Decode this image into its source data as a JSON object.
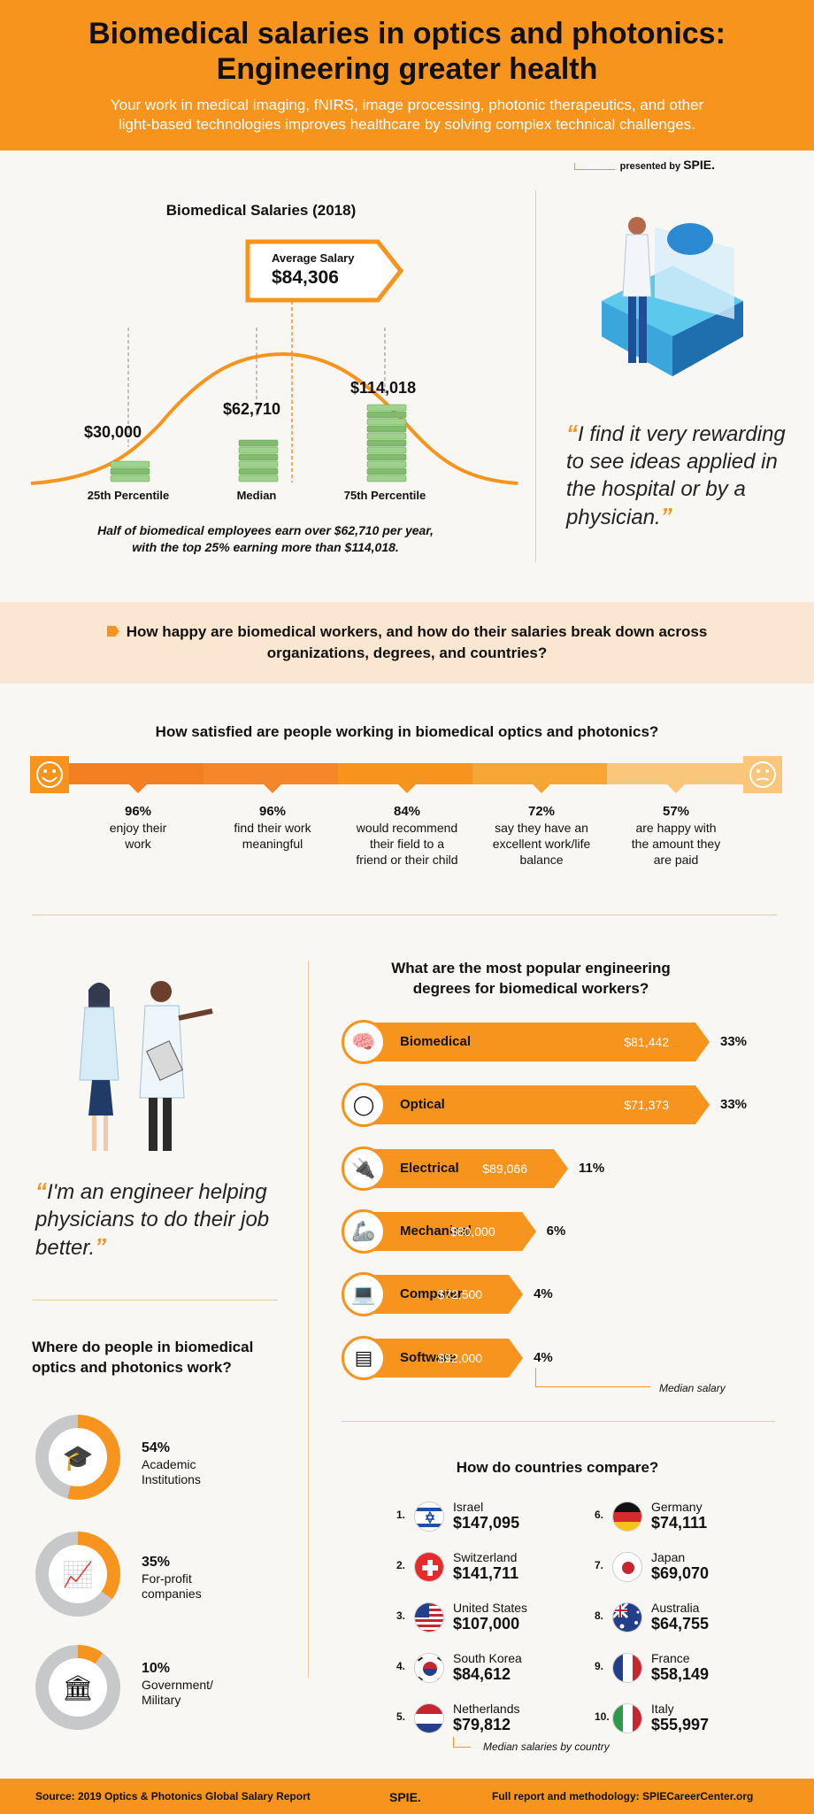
{
  "header": {
    "title_line1": "Biomedical salaries in optics and photonics:",
    "title_line2": "Engineering greater health",
    "subtitle_line1": "Your work in medical imaging, fNIRS, image processing, photonic therapeutics, and other",
    "subtitle_line2": "light-based technologies improves healthcare by solving complex technical challenges."
  },
  "presented": {
    "label": "presented by",
    "logo": "SPIE."
  },
  "salaries": {
    "title": "Biomedical Salaries (2018)",
    "average_label": "Average Salary",
    "average_value": "$84,306",
    "caption_line1": "Half of biomedical employees earn over $62,710 per year,",
    "caption_line2": "with the top 25% earning more than $114,018."
  },
  "chart_data": [
    {
      "type": "bar",
      "title": "Biomedical Salaries (2018)",
      "categories": [
        "25th Percentile",
        "Median",
        "75th Percentile"
      ],
      "values": [
        30000,
        62710,
        114018
      ],
      "value_labels": [
        "$30,000",
        "$62,710",
        "$114,018"
      ],
      "average": 84306
    },
    {
      "type": "bar",
      "title": "How satisfied are people working in biomedical optics and photonics?",
      "categories": [
        "enjoy their work",
        "find their work meaningful",
        "would recommend their field to a friend or their child",
        "say they have an excellent work/life balance",
        "are happy with the amount they are paid"
      ],
      "values": [
        96,
        96,
        84,
        72,
        57
      ]
    },
    {
      "type": "bar",
      "title": "What are the most popular engineering degrees for biomedical workers?",
      "categories": [
        "Biomedical",
        "Optical",
        "Electrical",
        "Mechanical",
        "Computer",
        "Software"
      ],
      "values": [
        33,
        33,
        11,
        6,
        4,
        4
      ],
      "median_salary": [
        81442,
        71373,
        89066,
        80000,
        72500,
        92000
      ]
    },
    {
      "type": "pie",
      "title": "Where do people in biomedical optics and photonics work?",
      "categories": [
        "Academic Institutions",
        "For-profit companies",
        "Government/ Military"
      ],
      "values": [
        54,
        35,
        10
      ]
    },
    {
      "type": "table",
      "title": "How do countries compare?",
      "categories": [
        "Israel",
        "Switzerland",
        "United States",
        "South Korea",
        "Netherlands",
        "Germany",
        "Japan",
        "Australia",
        "France",
        "Italy"
      ],
      "values": [
        147095,
        141711,
        107000,
        84612,
        79812,
        74111,
        69070,
        64755,
        58149,
        55997
      ]
    }
  ],
  "quote1": "I find it very rewarding to see ideas applied in the hospital or by a physician.",
  "band": {
    "line1": "How happy are biomedical workers, and how do their salaries break down across",
    "line2": "organizations, degrees, and countries?"
  },
  "satisfaction": {
    "title": "How satisfied are people working in biomedical optics and photonics?",
    "stats": [
      {
        "pct": "96%",
        "l1": "enjoy their",
        "l2": "work",
        "l3": ""
      },
      {
        "pct": "96%",
        "l1": "find their work",
        "l2": "meaningful",
        "l3": ""
      },
      {
        "pct": "84%",
        "l1": "would recommend",
        "l2": "their field to a",
        "l3": "friend or their child"
      },
      {
        "pct": "72%",
        "l1": "say they have an",
        "l2": "excellent work/life",
        "l3": "balance"
      },
      {
        "pct": "57%",
        "l1": "are happy with",
        "l2": "the amount they",
        "l3": "are paid"
      }
    ]
  },
  "degrees": {
    "title_line1": "What are the most popular engineering",
    "title_line2": "degrees for biomedical workers?",
    "items": [
      {
        "name": "Biomedical",
        "salary": "$81,442",
        "pct": "33%",
        "icon": "brain-icon"
      },
      {
        "name": "Optical",
        "salary": "$71,373",
        "pct": "33%",
        "icon": "lens-icon"
      },
      {
        "name": "Electrical",
        "salary": "$89,066",
        "pct": "11%",
        "icon": "plug-icon"
      },
      {
        "name": "Mechanical",
        "salary": "$80,000",
        "pct": "6%",
        "icon": "robot-arm-icon"
      },
      {
        "name": "Computer",
        "salary": "$72,500",
        "pct": "4%",
        "icon": "laptop-icon"
      },
      {
        "name": "Software",
        "salary": "$92,000",
        "pct": "4%",
        "icon": "code-icon"
      }
    ],
    "note": "Median salary"
  },
  "quote2": "I'm an engineer helping physicians to do their job better.",
  "work": {
    "title_line1": "Where do people in biomedical",
    "title_line2": "optics and photonics work?",
    "items": [
      {
        "pct": "54%",
        "l1": "Academic",
        "l2": "Institutions",
        "icon": "graduation-cap-icon"
      },
      {
        "pct": "35%",
        "l1": "For-profit",
        "l2": "companies",
        "icon": "presentation-board-icon"
      },
      {
        "pct": "10%",
        "l1": "Government/",
        "l2": "Military",
        "icon": "government-building-icon"
      }
    ]
  },
  "countries": {
    "title": "How do countries compare?",
    "items": [
      {
        "rank": "1.",
        "name": "Israel",
        "salary": "$147,095"
      },
      {
        "rank": "2.",
        "name": "Switzerland",
        "salary": "$141,711"
      },
      {
        "rank": "3.",
        "name": "United States",
        "salary": "$107,000"
      },
      {
        "rank": "4.",
        "name": "South Korea",
        "salary": "$84,612"
      },
      {
        "rank": "5.",
        "name": "Netherlands",
        "salary": "$79,812"
      },
      {
        "rank": "6.",
        "name": "Germany",
        "salary": "$74,111"
      },
      {
        "rank": "7.",
        "name": "Japan",
        "salary": "$69,070"
      },
      {
        "rank": "8.",
        "name": "Australia",
        "salary": "$64,755"
      },
      {
        "rank": "9.",
        "name": "France",
        "salary": "$58,149"
      },
      {
        "rank": "10.",
        "name": "Italy",
        "salary": "$55,997"
      }
    ],
    "note": "Median salaries by country"
  },
  "footer": {
    "source": "Source: 2019 Optics & Photonics Global Salary Report",
    "logo": "SPIE.",
    "report": "Full report and methodology: SPIECareerCenter.org"
  },
  "colors": {
    "orange": "#f7941d",
    "light_orange": "#fbe7d1",
    "gray": "#c7c8ca",
    "money_green": "#8fc77d"
  }
}
